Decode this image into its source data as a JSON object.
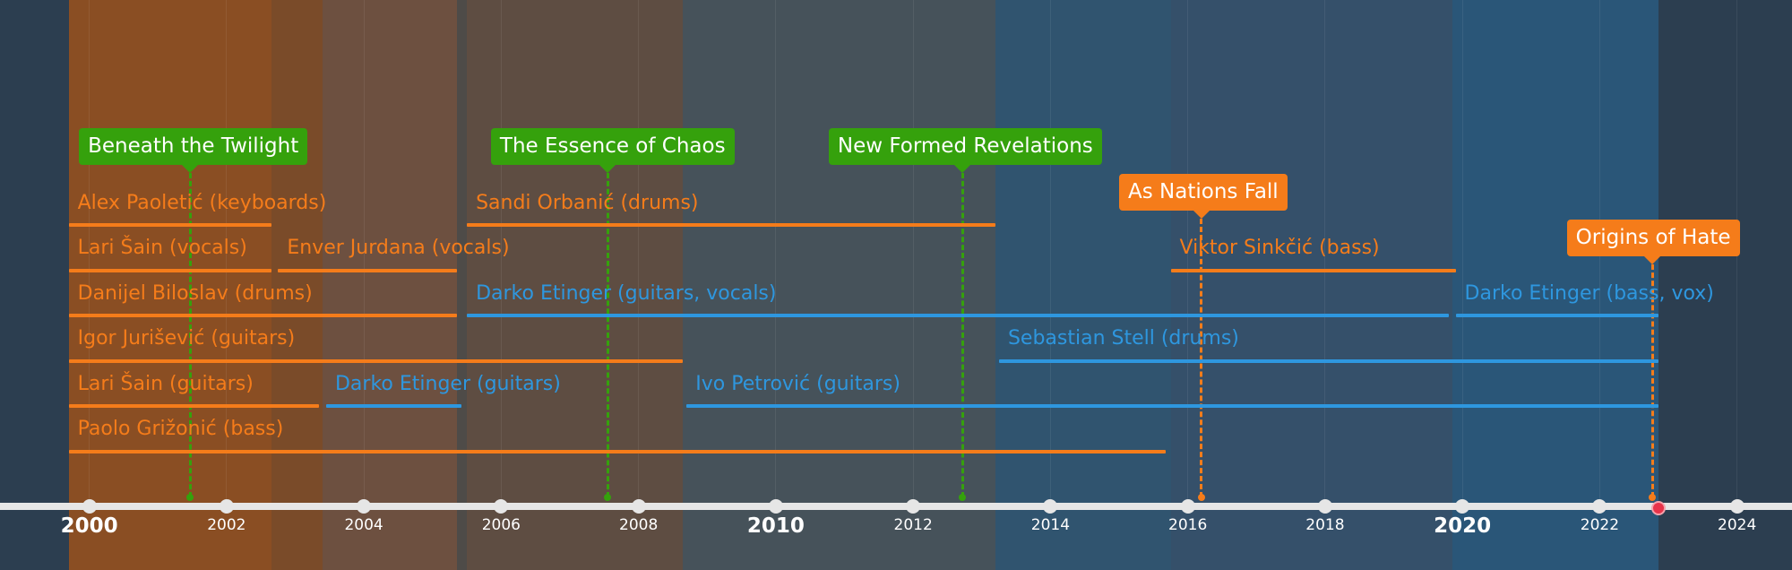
{
  "colors": {
    "background": "#2c3e50",
    "axis": "#e6e6e6",
    "orange": "#f57c1a",
    "blue": "#2e97df",
    "green": "#35a10c",
    "release_orange": "#f57c1a",
    "now_marker": "#e8334a"
  },
  "axis": {
    "range_years": [
      1998.7,
      2024.8
    ],
    "ticks": [
      {
        "year": 2000,
        "label": "2000",
        "major": true
      },
      {
        "year": 2002,
        "label": "2002",
        "major": false
      },
      {
        "year": 2004,
        "label": "2004",
        "major": false
      },
      {
        "year": 2006,
        "label": "2006",
        "major": false
      },
      {
        "year": 2008,
        "label": "2008",
        "major": false
      },
      {
        "year": 2010,
        "label": "2010",
        "major": true
      },
      {
        "year": 2012,
        "label": "2012",
        "major": false
      },
      {
        "year": 2014,
        "label": "2014",
        "major": false
      },
      {
        "year": 2016,
        "label": "2016",
        "major": false
      },
      {
        "year": 2018,
        "label": "2018",
        "major": false
      },
      {
        "year": 2020,
        "label": "2020",
        "major": true
      },
      {
        "year": 2022,
        "label": "2022",
        "major": false
      },
      {
        "year": 2024,
        "label": "2024",
        "major": false
      }
    ],
    "now_year": 2022.85
  },
  "bands": [
    {
      "start": 1999.7,
      "end": 2002.65,
      "color": "#8a4e23"
    },
    {
      "start": 2002.65,
      "end": 2003.4,
      "color": "#7a4b29"
    },
    {
      "start": 2003.4,
      "end": 2005.35,
      "color": "#6d5040"
    },
    {
      "start": 2005.35,
      "end": 2005.5,
      "color": "#4e4b48"
    },
    {
      "start": 2005.5,
      "end": 2008.65,
      "color": "#5e4d42"
    },
    {
      "start": 2008.65,
      "end": 2013.2,
      "color": "#46525a"
    },
    {
      "start": 2013.2,
      "end": 2015.75,
      "color": "#30546f"
    },
    {
      "start": 2015.75,
      "end": 2019.85,
      "color": "#35506a"
    },
    {
      "start": 2019.85,
      "end": 2022.85,
      "color": "#2a5678"
    }
  ],
  "members": [
    {
      "label": "Alex Paoletić (keyboards)",
      "start": 1999.7,
      "end": 2002.65,
      "row": 0,
      "color": "orange"
    },
    {
      "label": "Sandi Orbanić (drums)",
      "start": 2005.5,
      "end": 2013.2,
      "row": 0,
      "color": "orange"
    },
    {
      "label": "Lari Šain (vocals)",
      "start": 1999.7,
      "end": 2002.65,
      "row": 1,
      "color": "orange"
    },
    {
      "label": "Enver Jurdana (vocals)",
      "start": 2002.75,
      "end": 2005.35,
      "row": 1,
      "color": "orange"
    },
    {
      "label": "Viktor Sinkčić (bass)",
      "start": 2015.75,
      "end": 2019.9,
      "row": 1,
      "color": "orange"
    },
    {
      "label": "Danijel Biloslav (drums)",
      "start": 1999.7,
      "end": 2005.35,
      "row": 2,
      "color": "orange"
    },
    {
      "label": "Darko Etinger (guitars, vocals)",
      "start": 2005.5,
      "end": 2019.8,
      "row": 2,
      "color": "blue"
    },
    {
      "label": "Darko Etinger (bass, vox)",
      "start": 2019.9,
      "end": 2022.85,
      "row": 2,
      "color": "blue"
    },
    {
      "label": "Igor Jurišević (guitars)",
      "start": 1999.7,
      "end": 2008.65,
      "row": 3,
      "color": "orange"
    },
    {
      "label": "Sebastian Stell (drums)",
      "start": 2013.25,
      "end": 2022.85,
      "row": 3,
      "color": "blue"
    },
    {
      "label": "Lari Šain (guitars)",
      "start": 1999.7,
      "end": 2003.35,
      "row": 4,
      "color": "orange"
    },
    {
      "label": "Darko Etinger (guitars)",
      "start": 2003.45,
      "end": 2005.42,
      "row": 4,
      "color": "blue"
    },
    {
      "label": "Ivo Petrović (guitars)",
      "start": 2008.7,
      "end": 2022.85,
      "row": 4,
      "color": "blue"
    },
    {
      "label": "Paolo Grižonić (bass)",
      "start": 1999.7,
      "end": 2015.68,
      "row": 5,
      "color": "orange"
    }
  ],
  "releases": [
    {
      "label": "Beneath the Twilight",
      "year": 2001.47,
      "level": 0,
      "color": "green",
      "box_start": 1999.85
    },
    {
      "label": "The Essence of Chaos",
      "year": 2007.55,
      "level": 0,
      "color": "green",
      "box_start": 2005.85
    },
    {
      "label": "New Formed Revelations",
      "year": 2012.72,
      "level": 0,
      "color": "green",
      "box_start": 2010.77
    },
    {
      "label": "As Nations Fall",
      "year": 2016.2,
      "level": 1,
      "color": "release_orange",
      "box_start": 2015.0
    },
    {
      "label": "Origins of Hate",
      "year": 2022.77,
      "level": 2,
      "color": "release_orange",
      "box_start": 2021.52
    }
  ]
}
